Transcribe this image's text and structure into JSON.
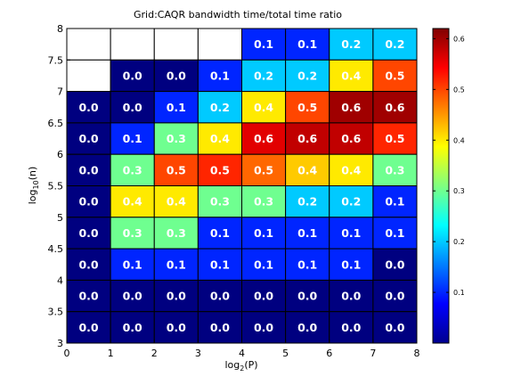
{
  "chart_data": {
    "type": "heatmap",
    "title": "Grid:CAQR bandwidth time/total time ratio",
    "xlabel": {
      "base": "log",
      "sub": "2",
      "rest": "(P)"
    },
    "ylabel": {
      "base": "log",
      "sub": "10",
      "rest": "(n)"
    },
    "xlim": [
      0,
      8
    ],
    "ylim": [
      3,
      8
    ],
    "x_ticks": [
      "0",
      "1",
      "2",
      "3",
      "4",
      "5",
      "6",
      "7",
      "8"
    ],
    "y_ticks": [
      "3",
      "3.5",
      "4",
      "4.5",
      "5",
      "5.5",
      "6",
      "6.5",
      "7",
      "7.5",
      "8"
    ],
    "colorbar": {
      "range": [
        0.0,
        0.62
      ],
      "ticks": [
        "0.1",
        "0.2",
        "0.3",
        "0.4",
        "0.5",
        "0.6"
      ],
      "tick_values": [
        0.1,
        0.2,
        0.3,
        0.4,
        0.5,
        0.6
      ],
      "colormap": "jet"
    },
    "x_edges": [
      0,
      1,
      2,
      3,
      4,
      5,
      6,
      7,
      8
    ],
    "y_edges": [
      3,
      3.5,
      4,
      4.5,
      5,
      5.5,
      6,
      6.5,
      7,
      7.5,
      8
    ],
    "rows_top_to_bottom": [
      [
        null,
        null,
        null,
        null,
        0.1,
        0.1,
        0.2,
        0.2
      ],
      [
        null,
        0.0,
        0.0,
        0.1,
        0.2,
        0.2,
        0.4,
        0.5
      ],
      [
        0.0,
        0.0,
        0.1,
        0.2,
        0.4,
        0.5,
        0.6,
        0.6
      ],
      [
        0.0,
        0.1,
        0.3,
        0.4,
        0.56,
        0.58,
        0.58,
        0.52
      ],
      [
        0.0,
        0.3,
        0.5,
        0.52,
        0.48,
        0.42,
        0.4,
        0.3
      ],
      [
        0.0,
        0.4,
        0.4,
        0.3,
        0.3,
        0.2,
        0.2,
        0.1
      ],
      [
        0.0,
        0.3,
        0.3,
        0.1,
        0.1,
        0.1,
        0.1,
        0.1
      ],
      [
        0.0,
        0.1,
        0.1,
        0.1,
        0.1,
        0.1,
        0.1,
        0.0
      ],
      [
        0.0,
        0.0,
        0.0,
        0.0,
        0.0,
        0.0,
        0.0,
        0.0
      ],
      [
        0.0,
        0.0,
        0.0,
        0.0,
        0.0,
        0.0,
        0.0,
        0.0
      ]
    ],
    "labels_top_to_bottom": [
      [
        "",
        "",
        "",
        "",
        "0.1",
        "0.1",
        "0.2",
        "0.2"
      ],
      [
        "",
        "0.0",
        "0.0",
        "0.1",
        "0.2",
        "0.2",
        "0.4",
        "0.5"
      ],
      [
        "0.0",
        "0.0",
        "0.1",
        "0.2",
        "0.4",
        "0.5",
        "0.6",
        "0.6"
      ],
      [
        "0.0",
        "0.1",
        "0.3",
        "0.4",
        "0.6",
        "0.6",
        "0.6",
        "0.5"
      ],
      [
        "0.0",
        "0.3",
        "0.5",
        "0.5",
        "0.5",
        "0.4",
        "0.4",
        "0.3"
      ],
      [
        "0.0",
        "0.4",
        "0.4",
        "0.3",
        "0.3",
        "0.2",
        "0.2",
        "0.1"
      ],
      [
        "0.0",
        "0.3",
        "0.3",
        "0.1",
        "0.1",
        "0.1",
        "0.1",
        "0.1"
      ],
      [
        "0.0",
        "0.1",
        "0.1",
        "0.1",
        "0.1",
        "0.1",
        "0.1",
        "0.0"
      ],
      [
        "0.0",
        "0.0",
        "0.0",
        "0.0",
        "0.0",
        "0.0",
        "0.0",
        "0.0"
      ],
      [
        "0.0",
        "0.0",
        "0.0",
        "0.0",
        "0.0",
        "0.0",
        "0.0",
        "0.0"
      ]
    ]
  }
}
